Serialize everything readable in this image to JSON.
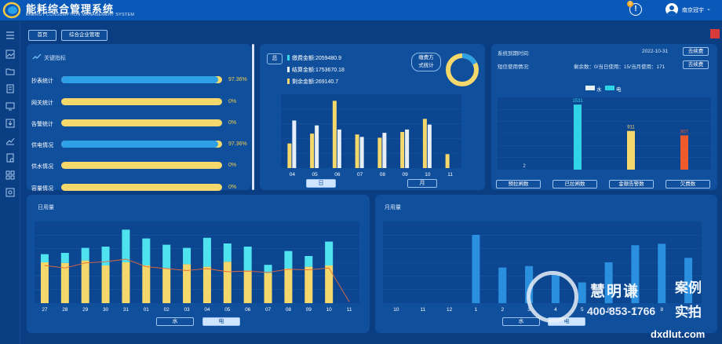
{
  "header": {
    "app_title": "能耗综合管理系统",
    "app_subtitle": "ENERGY CONSUMPTION MANAGEMENT SYSTEM",
    "alert_count": "0",
    "alert_symbol": "!",
    "username": "南京冠宇",
    "user_caret": "⌄"
  },
  "nav": {
    "home": "首页",
    "enterprise": "综合企业管理"
  },
  "kpi": {
    "title": "关键指标",
    "items": [
      {
        "label": "抄表统计",
        "value": "97.36%",
        "fill": 0.9736
      },
      {
        "label": "网关统计",
        "value": "0%",
        "fill": 0
      },
      {
        "label": "告警统计",
        "value": "0%",
        "fill": 0
      },
      {
        "label": "供电情况",
        "value": "97.36%",
        "fill": 0.9736
      },
      {
        "label": "供水情况",
        "value": "0%",
        "fill": 0
      },
      {
        "label": "容量情况",
        "value": "0%",
        "fill": 0
      }
    ]
  },
  "fees": {
    "tag": "总",
    "lines": [
      "缴费金额:2059480.9",
      "结算金额:1753670.18",
      "剩余金额:269140.7"
    ],
    "line_colors": [
      "#32d7e8",
      "#e6eef8",
      "#f5d86b"
    ],
    "mode_label_1": "缴费方",
    "mode_label_2": "式统计",
    "btn_day": "日",
    "btn_month": "月"
  },
  "fee_chart": {
    "categories": [
      "04",
      "05",
      "06",
      "07",
      "08",
      "09",
      "10",
      "11"
    ],
    "series": [
      {
        "values": [
          30,
          42,
          82,
          41,
          37,
          44,
          60,
          17
        ],
        "color": "#f5d86b"
      },
      {
        "values": [
          58,
          52,
          47,
          38,
          43,
          47,
          53,
          0
        ],
        "color": "#e6eef8"
      }
    ],
    "ylim": [
      0,
      90
    ]
  },
  "system": {
    "expire_label": "系统到期时间:",
    "expire_date": "2022-10-31",
    "renew": "去续费",
    "sms_label": "短信使用情况:",
    "sms_usage": "剩余数：0/当日使用：15/当月使用：171",
    "legend_water": "水",
    "legend_power": "电",
    "tabs": [
      "预拉闸数",
      "已拉闸数",
      "金额告警数",
      "欠费数"
    ]
  },
  "sys_chart": {
    "type": "bar",
    "categories": [
      "预拉闸数",
      "已拉闸数",
      "金额告警数",
      "欠费数"
    ],
    "values": [
      2,
      1531,
      911,
      807
    ],
    "colors": [
      "#2fd5e6",
      "#2fd5e6",
      "#f5d86b",
      "#f0592a"
    ],
    "ylim": [
      0,
      1700
    ]
  },
  "day_panel": {
    "title": "日用量",
    "btn_water": "水",
    "btn_power": "电"
  },
  "day_chart": {
    "type": "bar",
    "categories": [
      "27",
      "28",
      "29",
      "30",
      "31",
      "01",
      "02",
      "03",
      "04",
      "05",
      "06",
      "07",
      "08",
      "09",
      "10",
      "11"
    ],
    "series": [
      {
        "name": "水",
        "values": [
          65,
          64,
          68,
          60,
          65,
          60,
          55,
          62,
          58,
          66,
          52,
          48,
          55,
          58,
          60,
          0
        ],
        "color": "#f5d86b"
      },
      {
        "name": "电",
        "values": [
          13,
          16,
          20,
          30,
          52,
          43,
          38,
          26,
          46,
          29,
          38,
          13,
          28,
          17,
          38,
          0
        ],
        "color": "#4fe3f0"
      }
    ],
    "line_values": [
      60,
      56,
      64,
      66,
      70,
      58,
      55,
      52,
      55,
      50,
      51,
      49,
      54,
      53,
      56,
      2
    ],
    "ylim": [
      0,
      130
    ]
  },
  "month_panel": {
    "title": "月用量",
    "btn_water": "水",
    "btn_power": "电"
  },
  "month_chart": {
    "type": "bar",
    "categories": [
      "10",
      "11",
      "12",
      "1",
      "2",
      "3",
      "4",
      "5",
      "6",
      "7",
      "8",
      "9"
    ],
    "values": [
      0,
      0,
      0,
      92,
      48,
      50,
      38,
      28,
      55,
      78,
      80,
      61
    ],
    "color": "#2a8fde",
    "ylim": [
      0,
      110
    ]
  },
  "watermark": {
    "name": "慧明谦",
    "phone": "400-853-1766",
    "case": "案例",
    "shoot": "实拍",
    "url": "dxdlut.com"
  }
}
